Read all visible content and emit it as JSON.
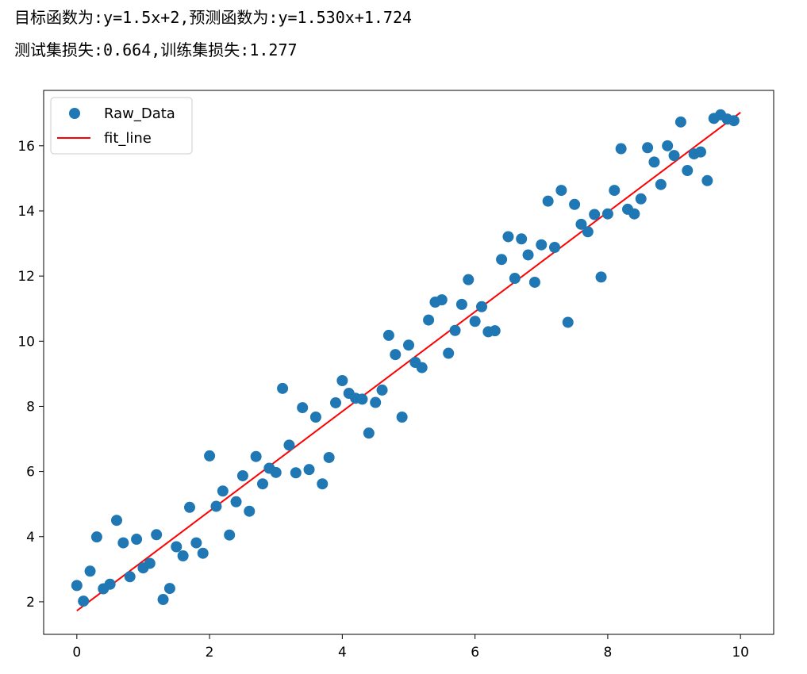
{
  "output": {
    "line1": "目标函数为:y=1.5x+2,预测函数为:y=1.530x+1.724",
    "line2": "测试集损失:0.664,训练集损失:1.277"
  },
  "chart_data": {
    "type": "scatter",
    "title": "",
    "xlabel": "",
    "ylabel": "",
    "xlim": [
      -0.5,
      10.5
    ],
    "ylim": [
      1.0,
      17.7
    ],
    "xticks": [
      0,
      2,
      4,
      6,
      8,
      10
    ],
    "yticks": [
      2,
      4,
      6,
      8,
      10,
      12,
      14,
      16
    ],
    "grid": false,
    "legend_position": "top-left",
    "series": [
      {
        "name": "Raw_Data",
        "kind": "scatter",
        "color": "#1f77b4",
        "points": [
          [
            0.0,
            2.5
          ],
          [
            0.1,
            2.02
          ],
          [
            0.2,
            2.94
          ],
          [
            0.3,
            3.99
          ],
          [
            0.4,
            2.4
          ],
          [
            0.5,
            2.54
          ],
          [
            0.6,
            4.5
          ],
          [
            0.7,
            3.81
          ],
          [
            0.8,
            2.77
          ],
          [
            0.9,
            3.92
          ],
          [
            1.0,
            3.04
          ],
          [
            1.1,
            3.18
          ],
          [
            1.2,
            4.06
          ],
          [
            1.3,
            2.07
          ],
          [
            1.4,
            2.41
          ],
          [
            1.5,
            3.69
          ],
          [
            1.6,
            3.41
          ],
          [
            1.7,
            4.9
          ],
          [
            1.8,
            3.81
          ],
          [
            1.9,
            3.49
          ],
          [
            2.0,
            6.48
          ],
          [
            2.1,
            4.93
          ],
          [
            2.2,
            5.4
          ],
          [
            2.3,
            4.05
          ],
          [
            2.4,
            5.07
          ],
          [
            2.5,
            5.87
          ],
          [
            2.6,
            4.78
          ],
          [
            2.7,
            6.46
          ],
          [
            2.8,
            5.62
          ],
          [
            2.9,
            6.1
          ],
          [
            3.0,
            5.97
          ],
          [
            3.1,
            8.55
          ],
          [
            3.2,
            6.81
          ],
          [
            3.3,
            5.96
          ],
          [
            3.4,
            7.96
          ],
          [
            3.5,
            6.06
          ],
          [
            3.6,
            7.67
          ],
          [
            3.7,
            5.62
          ],
          [
            3.8,
            6.43
          ],
          [
            3.9,
            8.11
          ],
          [
            4.0,
            8.79
          ],
          [
            4.1,
            8.4
          ],
          [
            4.2,
            8.25
          ],
          [
            4.3,
            8.22
          ],
          [
            4.4,
            7.18
          ],
          [
            4.5,
            8.12
          ],
          [
            4.6,
            8.5
          ],
          [
            4.7,
            10.18
          ],
          [
            4.8,
            9.59
          ],
          [
            4.9,
            7.67
          ],
          [
            5.0,
            9.88
          ],
          [
            5.1,
            9.35
          ],
          [
            5.2,
            9.19
          ],
          [
            5.3,
            10.65
          ],
          [
            5.4,
            11.2
          ],
          [
            5.5,
            11.27
          ],
          [
            5.6,
            9.63
          ],
          [
            5.7,
            10.33
          ],
          [
            5.8,
            11.13
          ],
          [
            5.9,
            11.89
          ],
          [
            6.0,
            10.61
          ],
          [
            6.1,
            11.06
          ],
          [
            6.2,
            10.29
          ],
          [
            6.3,
            10.32
          ],
          [
            6.4,
            12.51
          ],
          [
            6.5,
            13.21
          ],
          [
            6.6,
            11.93
          ],
          [
            6.7,
            13.14
          ],
          [
            6.8,
            12.65
          ],
          [
            6.9,
            11.81
          ],
          [
            7.0,
            12.96
          ],
          [
            7.1,
            14.3
          ],
          [
            7.2,
            12.88
          ],
          [
            7.3,
            14.63
          ],
          [
            7.4,
            10.58
          ],
          [
            7.5,
            14.2
          ],
          [
            7.6,
            13.59
          ],
          [
            7.7,
            13.36
          ],
          [
            7.8,
            13.89
          ],
          [
            7.9,
            11.97
          ],
          [
            8.0,
            13.91
          ],
          [
            8.1,
            14.63
          ],
          [
            8.2,
            15.91
          ],
          [
            8.3,
            14.05
          ],
          [
            8.4,
            13.91
          ],
          [
            8.5,
            14.37
          ],
          [
            8.6,
            15.94
          ],
          [
            8.7,
            15.5
          ],
          [
            8.8,
            14.81
          ],
          [
            8.9,
            16.0
          ],
          [
            9.0,
            15.7
          ],
          [
            9.1,
            16.73
          ],
          [
            9.2,
            15.24
          ],
          [
            9.3,
            15.75
          ],
          [
            9.4,
            15.81
          ],
          [
            9.5,
            14.93
          ],
          [
            9.6,
            16.84
          ],
          [
            9.7,
            16.95
          ],
          [
            9.8,
            16.82
          ],
          [
            9.9,
            16.77
          ]
        ]
      },
      {
        "name": "fit_line",
        "kind": "line",
        "color": "#ff0000",
        "points": [
          [
            0.0,
            1.724
          ],
          [
            10.0,
            17.024
          ]
        ]
      }
    ]
  }
}
